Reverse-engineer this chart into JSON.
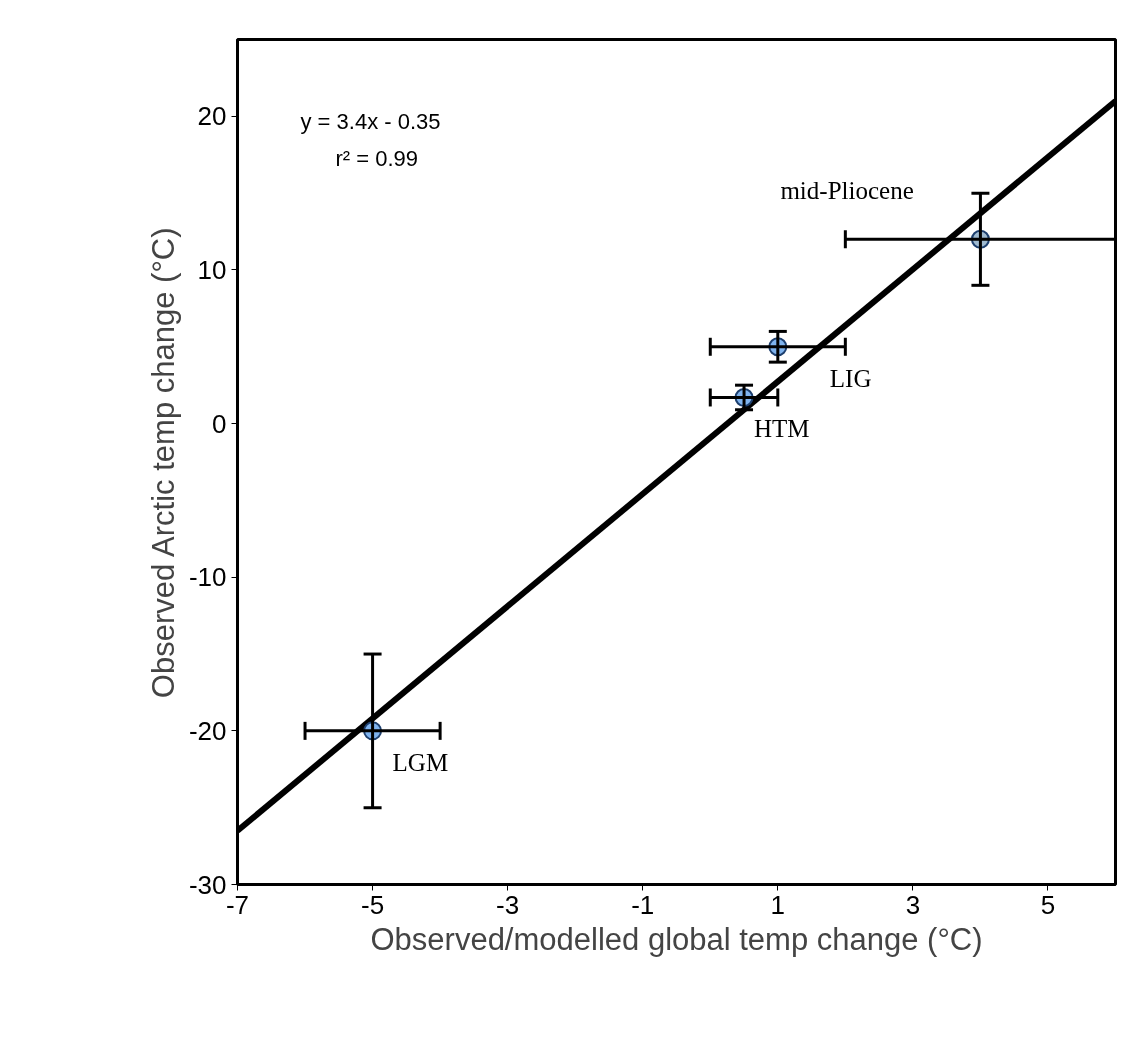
{
  "chart_data": {
    "type": "scatter",
    "xlabel": "Observed/modelled global temp change (°C)",
    "ylabel": "Observed Arctic temp change (°C)",
    "xlim": [
      -7,
      6
    ],
    "xticks": [
      -7,
      -5,
      -3,
      -1,
      1,
      3,
      5
    ],
    "ylim": [
      -30,
      25
    ],
    "yticks": [
      -30,
      -20,
      -10,
      0,
      10,
      20
    ],
    "grid": false,
    "series": [
      {
        "marker": "circle",
        "x": [
          -5,
          0.5,
          1,
          4
        ],
        "values": [
          -20,
          1.7,
          5,
          12
        ],
        "colors": [
          "#7fb3ee",
          "#7fb3ee",
          "#7fb3ee",
          "#9fbad0"
        ],
        "errors": [
          5,
          0.8,
          1,
          3
        ],
        "xerrors": [
          1,
          0.5,
          1,
          2
        ]
      },
      {
        "type": "line",
        "color": "#000000",
        "x": [
          -7,
          6
        ],
        "values": [
          -26.5,
          21
        ],
        "line_style": "solid"
      }
    ],
    "annotations": [
      "y = 3.4x - 0.35",
      "r² = 0.99",
      {
        "text": "LGM",
        "x": -5,
        "y": -20
      },
      {
        "text": "HTM",
        "x": 0.5,
        "y": 1.7
      },
      {
        "text": "LIG",
        "x": 1,
        "y": 5
      },
      {
        "text": "mid-Pliocene",
        "x": 4,
        "y": 12
      }
    ]
  }
}
